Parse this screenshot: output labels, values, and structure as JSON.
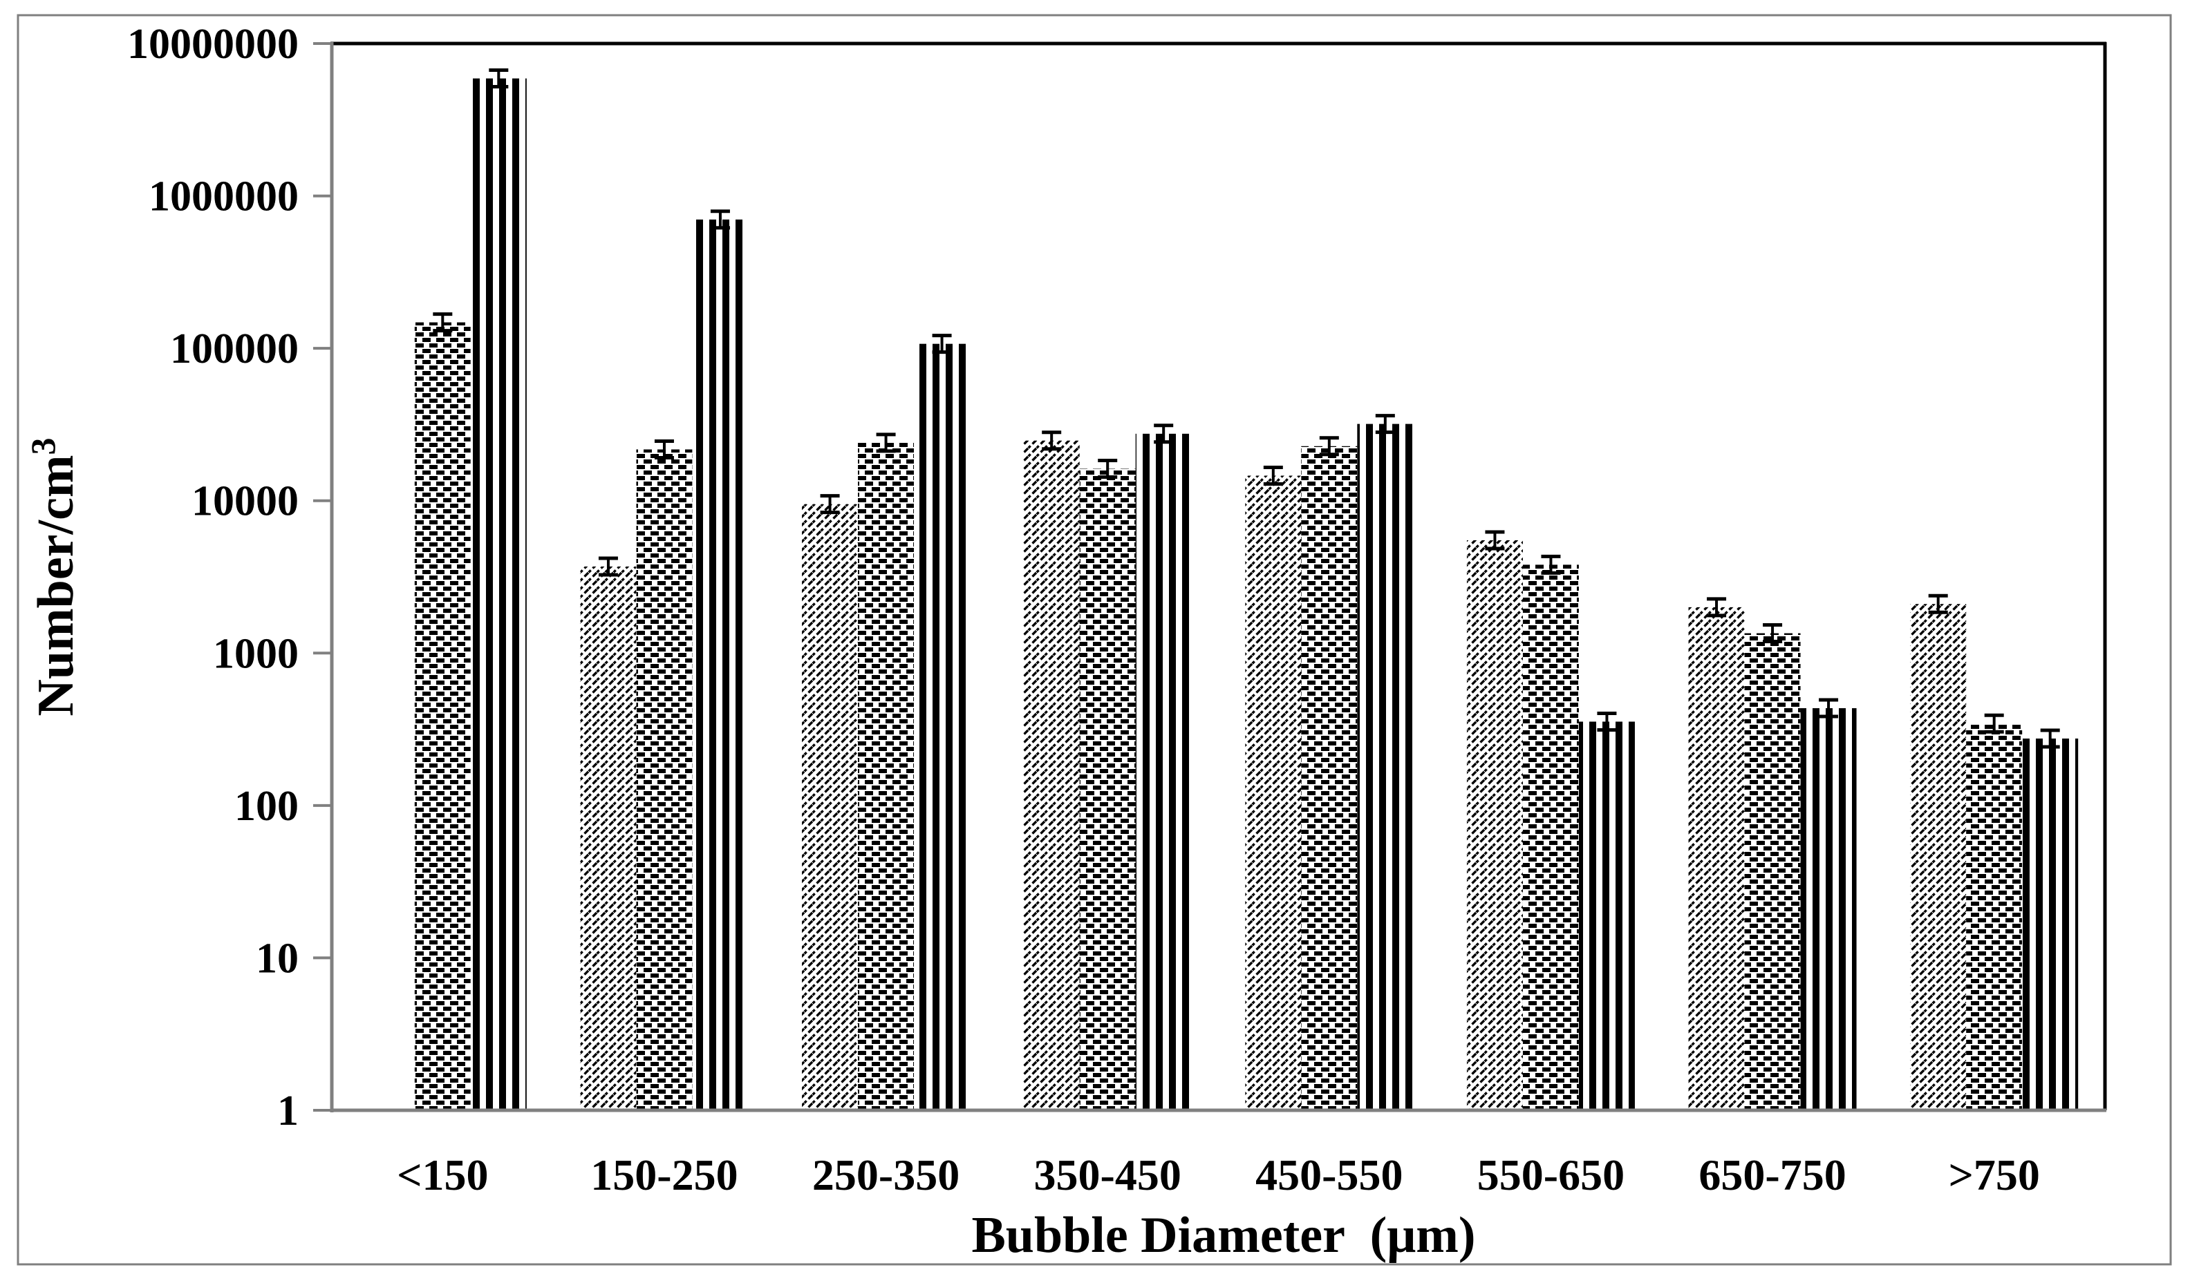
{
  "figure": {
    "background": "#ffffff",
    "outer_border_color": "#7f7f7f",
    "plot_border_black": "#000000",
    "axis_gray": "#808080",
    "bar_ink": "#000000",
    "y_axis_title_base": "Number/cm",
    "y_axis_title_superscript": "3",
    "x_axis_title": "Bubble Diameter  (μm)"
  },
  "chart_data": {
    "type": "bar",
    "title": "",
    "xlabel": "Bubble Diameter  (μm)",
    "ylabel": "Number/cm³",
    "y_scale": "log10",
    "ylim": [
      1,
      10000000
    ],
    "grid": "off",
    "legend": "none",
    "error_bars": true,
    "y_tick_labels": [
      "10000000",
      "1000000",
      "100000",
      "10000",
      "1000",
      "100",
      "10",
      "1"
    ],
    "y_tick_values": [
      10000000,
      1000000,
      100000,
      10000,
      1000,
      100,
      10,
      1
    ],
    "categories": [
      "<150",
      "150-250",
      "250-350",
      "350-450",
      "450-550",
      "550-650",
      "650-750",
      ">750"
    ],
    "series": [
      {
        "name": "diagonal-hatch",
        "pattern": "diagonal",
        "values": [
          null,
          3700,
          9500,
          24800,
          14600,
          5500,
          2000,
          2100
        ]
      },
      {
        "name": "checkered",
        "pattern": "checker",
        "values": [
          148000,
          21700,
          24000,
          16200,
          22800,
          3800,
          1350,
          345
        ]
      },
      {
        "name": "vertical-stripes",
        "pattern": "vertical",
        "values": [
          5900000,
          700000,
          107000,
          27500,
          31900,
          355,
          435,
          275
        ]
      }
    ]
  }
}
